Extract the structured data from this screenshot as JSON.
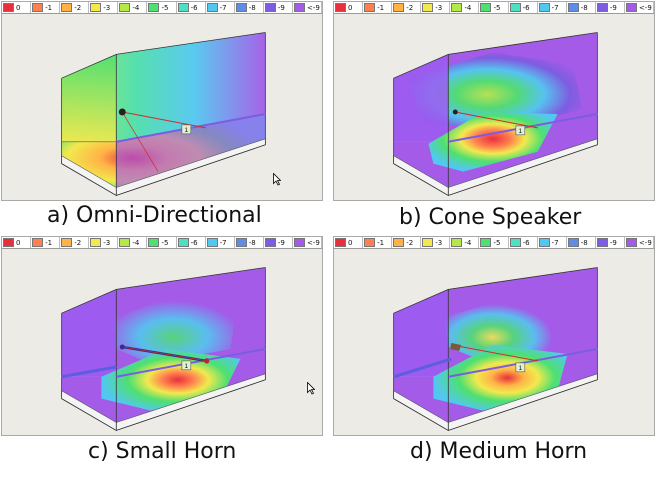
{
  "legend": [
    {
      "label": "0",
      "color": "#e8303c"
    },
    {
      "label": "-1",
      "color": "#ff7f4f"
    },
    {
      "label": "-2",
      "color": "#ffb347"
    },
    {
      "label": "-3",
      "color": "#f2e94e"
    },
    {
      "label": "-4",
      "color": "#b6e84a"
    },
    {
      "label": "-5",
      "color": "#4ee070"
    },
    {
      "label": "-6",
      "color": "#4ee0c0"
    },
    {
      "label": "-7",
      "color": "#52c8f0"
    },
    {
      "label": "-8",
      "color": "#5d8de8"
    },
    {
      "label": "-9",
      "color": "#7c5ce0"
    },
    {
      "label": "<-9",
      "color": "#a35be8"
    }
  ],
  "panels": [
    {
      "caption": "a) Omni-Directional",
      "marker": "1"
    },
    {
      "caption": "b) Cone Speaker",
      "marker": "1"
    },
    {
      "caption": "c) Small Horn",
      "marker": "1"
    },
    {
      "caption": "d) Medium Horn",
      "marker": "1"
    }
  ],
  "colors": {
    "room": "#9c5cf0",
    "floor": "#f2f2f2",
    "beam": "#d22a2a",
    "horn": "#3a2a8a"
  }
}
